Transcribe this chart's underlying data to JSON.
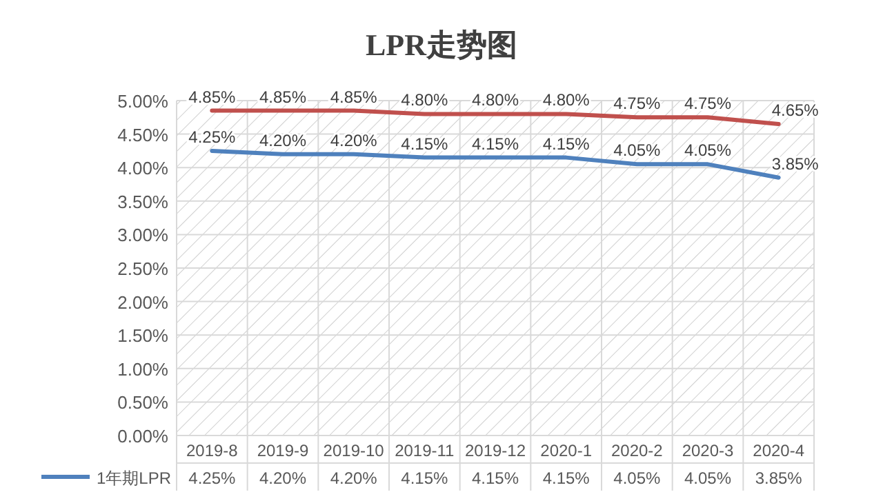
{
  "chart_data": {
    "type": "line",
    "title": "LPR走势图",
    "categories": [
      "2019-8",
      "2019-9",
      "2019-10",
      "2019-11",
      "2019-12",
      "2020-1",
      "2020-2",
      "2020-3",
      "2020-4"
    ],
    "series": [
      {
        "color": "#c0504d",
        "values": [
          4.85,
          4.85,
          4.85,
          4.8,
          4.8,
          4.8,
          4.75,
          4.75,
          4.65
        ],
        "value_labels": [
          "4.85%",
          "4.85%",
          "4.85%",
          "4.80%",
          "4.80%",
          "4.80%",
          "4.75%",
          "4.75%",
          "4.65%"
        ]
      },
      {
        "name": "1年期LPR",
        "color": "#4f81bd",
        "values": [
          4.25,
          4.2,
          4.2,
          4.15,
          4.15,
          4.15,
          4.05,
          4.05,
          3.85
        ],
        "value_labels": [
          "4.25%",
          "4.20%",
          "4.20%",
          "4.15%",
          "4.15%",
          "4.15%",
          "4.05%",
          "4.05%",
          "3.85%"
        ]
      }
    ],
    "ylim": [
      0,
      5
    ],
    "yticks": [
      {
        "value": 0,
        "label": "0.00%"
      },
      {
        "value": 0.5,
        "label": "0.50%"
      },
      {
        "value": 1,
        "label": "1.00%"
      },
      {
        "value": 1.5,
        "label": "1.50%"
      },
      {
        "value": 2,
        "label": "2.00%"
      },
      {
        "value": 2.5,
        "label": "2.50%"
      },
      {
        "value": 3,
        "label": "3.00%"
      },
      {
        "value": 3.5,
        "label": "3.50%"
      },
      {
        "value": 4,
        "label": "4.00%"
      },
      {
        "value": 4.5,
        "label": "4.50%"
      },
      {
        "value": 5,
        "label": "5.00%"
      }
    ],
    "grid": true,
    "legend": "bottom",
    "marker": "none",
    "line_style": "solid"
  }
}
